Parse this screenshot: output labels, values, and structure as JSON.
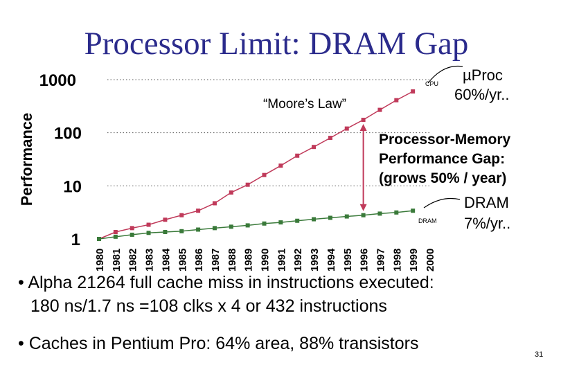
{
  "slide": {
    "title": "Processor Limit: DRAM Gap",
    "page_number": "31",
    "bullets": [
      "• Alpha 21264 full cache miss in instructions executed:",
      "180 ns/1.7 ns =108 clks x 4 or 432 instructions",
      "• Caches in Pentium Pro: 64% area, 88% transistors"
    ]
  },
  "chart_data": {
    "type": "line",
    "title": "",
    "ylabel": "Performance",
    "xlabel": "",
    "yscale": "log",
    "ylim": [
      1,
      1000
    ],
    "y_ticks": [
      "1",
      "10",
      "100",
      "1000"
    ],
    "x": [
      "1980",
      "1981",
      "1982",
      "1983",
      "1984",
      "1985",
      "1986",
      "1987",
      "1988",
      "1989",
      "1990",
      "1991",
      "1992",
      "1993",
      "1994",
      "1995",
      "1996",
      "1997",
      "1998",
      "1999",
      "2000"
    ],
    "series": [
      {
        "name": "CPU",
        "color": "#c03a5a",
        "values": [
          1,
          1.35,
          1.6,
          1.85,
          2.3,
          2.8,
          3.4,
          4.7,
          7.5,
          10.5,
          16,
          24,
          37,
          54,
          80,
          120,
          175,
          270,
          410,
          600,
          null
        ]
      },
      {
        "name": "DRAM",
        "color": "#3a7a3a",
        "values": [
          1,
          1.1,
          1.2,
          1.3,
          1.35,
          1.4,
          1.5,
          1.6,
          1.7,
          1.8,
          1.95,
          2.05,
          2.2,
          2.35,
          2.5,
          2.65,
          2.8,
          3.0,
          3.15,
          3.4,
          null
        ]
      }
    ],
    "annotations": {
      "moores_law": "“Moore’s Law”",
      "cpu_label": "CPU",
      "dram_label": "DRAM",
      "uproc_line1": "µProc",
      "uproc_line2": "60%/yr..",
      "gap_line1": "Processor-Memory",
      "gap_line2": "Performance Gap:",
      "gap_line3": "(grows 50% / year)",
      "dram_rate_line1": "DRAM",
      "dram_rate_line2": "7%/yr.."
    },
    "gridlines": "dotted at 10, 100, 1000",
    "accent_color": "#2b2b8c"
  }
}
